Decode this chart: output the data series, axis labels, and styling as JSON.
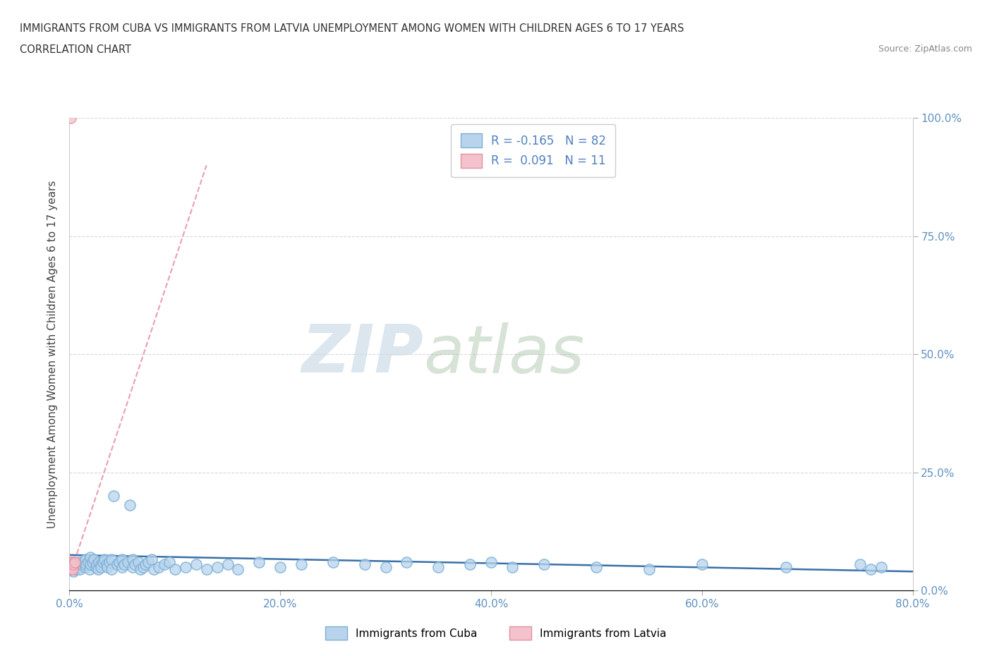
{
  "title_line1": "IMMIGRANTS FROM CUBA VS IMMIGRANTS FROM LATVIA UNEMPLOYMENT AMONG WOMEN WITH CHILDREN AGES 6 TO 17 YEARS",
  "title_line2": "CORRELATION CHART",
  "source_text": "Source: ZipAtlas.com",
  "ylabel": "Unemployment Among Women with Children Ages 6 to 17 years",
  "xlim": [
    0.0,
    0.8
  ],
  "ylim": [
    0.0,
    1.0
  ],
  "xticks": [
    0.0,
    0.2,
    0.4,
    0.6,
    0.8
  ],
  "xticklabels": [
    "0.0%",
    "20.0%",
    "40.0%",
    "60.0%",
    "80.0%"
  ],
  "yticks_left": [],
  "yticks_right": [
    0.0,
    0.25,
    0.5,
    0.75,
    1.0
  ],
  "yticklabels_right": [
    "0.0%",
    "25.0%",
    "50.0%",
    "75.0%",
    "100.0%"
  ],
  "cuba_R": -0.165,
  "cuba_N": 82,
  "latvia_R": 0.091,
  "latvia_N": 11,
  "cuba_color_face": "#b8d4ed",
  "cuba_color_edge": "#7bafd4",
  "latvia_color_face": "#f4c2cc",
  "latvia_color_edge": "#e090a0",
  "cuba_line_color": "#3a6fa8",
  "latvia_line_color": "#e8a0b0",
  "watermark_zip": "ZIP",
  "watermark_atlas": "atlas",
  "background_color": "#ffffff",
  "grid_color": "#d8d8d8",
  "tick_color": "#6090c0",
  "legend_R_color": "#5080c0",
  "cuba_scatter_x": [
    0.001,
    0.002,
    0.003,
    0.004,
    0.005,
    0.006,
    0.007,
    0.008,
    0.009,
    0.01,
    0.01,
    0.012,
    0.013,
    0.015,
    0.015,
    0.016,
    0.018,
    0.019,
    0.02,
    0.02,
    0.022,
    0.023,
    0.025,
    0.026,
    0.027,
    0.028,
    0.03,
    0.03,
    0.032,
    0.033,
    0.035,
    0.036,
    0.038,
    0.04,
    0.04,
    0.042,
    0.045,
    0.047,
    0.05,
    0.05,
    0.052,
    0.055,
    0.057,
    0.06,
    0.06,
    0.062,
    0.065,
    0.067,
    0.07,
    0.072,
    0.075,
    0.078,
    0.08,
    0.085,
    0.09,
    0.095,
    0.1,
    0.11,
    0.12,
    0.13,
    0.14,
    0.15,
    0.16,
    0.18,
    0.2,
    0.22,
    0.25,
    0.28,
    0.3,
    0.32,
    0.35,
    0.38,
    0.4,
    0.42,
    0.45,
    0.5,
    0.55,
    0.6,
    0.68,
    0.75,
    0.76,
    0.77
  ],
  "cuba_scatter_y": [
    0.045,
    0.05,
    0.06,
    0.04,
    0.055,
    0.045,
    0.05,
    0.055,
    0.06,
    0.05,
    0.045,
    0.055,
    0.06,
    0.065,
    0.05,
    0.055,
    0.06,
    0.045,
    0.07,
    0.055,
    0.06,
    0.065,
    0.05,
    0.055,
    0.045,
    0.06,
    0.055,
    0.05,
    0.06,
    0.065,
    0.055,
    0.05,
    0.06,
    0.065,
    0.045,
    0.2,
    0.055,
    0.06,
    0.065,
    0.05,
    0.055,
    0.06,
    0.18,
    0.065,
    0.05,
    0.055,
    0.06,
    0.045,
    0.05,
    0.055,
    0.06,
    0.065,
    0.045,
    0.05,
    0.055,
    0.06,
    0.045,
    0.05,
    0.055,
    0.045,
    0.05,
    0.055,
    0.045,
    0.06,
    0.05,
    0.055,
    0.06,
    0.055,
    0.05,
    0.06,
    0.05,
    0.055,
    0.06,
    0.05,
    0.055,
    0.05,
    0.045,
    0.055,
    0.05,
    0.055,
    0.045,
    0.05
  ],
  "latvia_scatter_x": [
    0.001,
    0.001,
    0.001,
    0.001,
    0.001,
    0.002,
    0.002,
    0.003,
    0.003,
    0.004,
    0.005
  ],
  "latvia_scatter_y": [
    1.0,
    0.06,
    0.055,
    0.05,
    0.045,
    0.06,
    0.055,
    0.05,
    0.045,
    0.055,
    0.06
  ],
  "cuba_regline_x": [
    0.0,
    0.8
  ],
  "cuba_regline_y": [
    0.075,
    0.04
  ],
  "latvia_regline_x": [
    0.0,
    0.13
  ],
  "latvia_regline_y": [
    0.03,
    0.9
  ]
}
